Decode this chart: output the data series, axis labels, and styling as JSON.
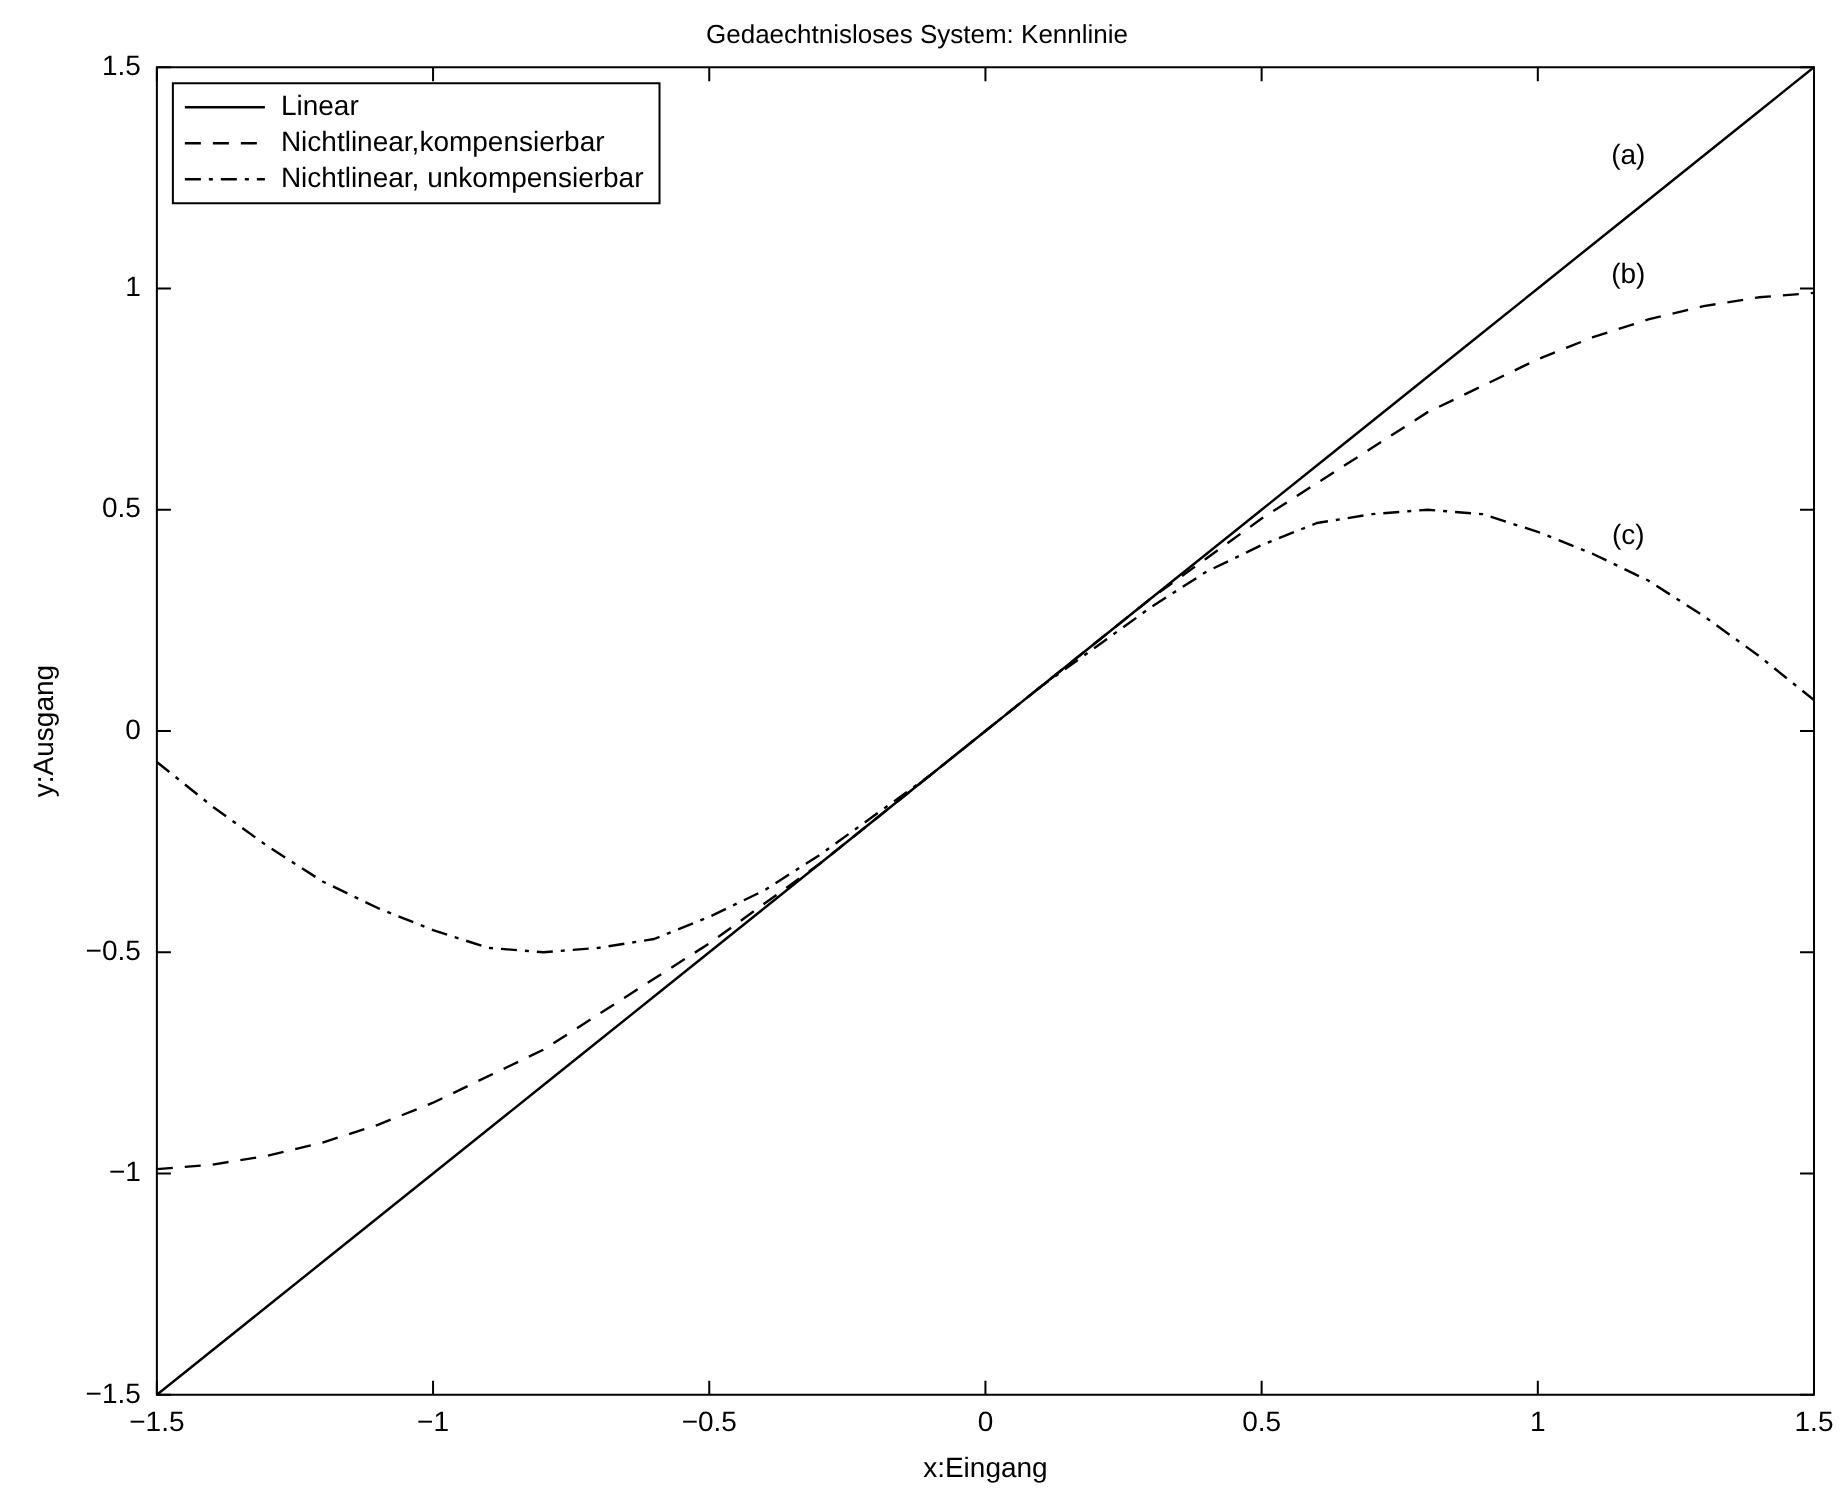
{
  "chart_data": {
    "type": "line",
    "title": "Gedaechtnisloses System: Kennlinie",
    "xlabel": "x:Eingang",
    "ylabel": "y:Ausgang",
    "x": [
      -1.5,
      -1.4,
      -1.3,
      -1.2,
      -1.1,
      -1.0,
      -0.9,
      -0.8,
      -0.7,
      -0.6,
      -0.5,
      -0.4,
      -0.3,
      -0.2,
      -0.1,
      0,
      0.1,
      0.2,
      0.3,
      0.4,
      0.5,
      0.6,
      0.7,
      0.8,
      0.9,
      1.0,
      1.1,
      1.2,
      1.3,
      1.4,
      1.5
    ],
    "series": [
      {
        "name": "Linear",
        "color": "#000000",
        "line_style": "solid",
        "values": [
          -1.5,
          -1.4,
          -1.3,
          -1.2,
          -1.1,
          -1.0,
          -0.9,
          -0.8,
          -0.7,
          -0.6,
          -0.5,
          -0.4,
          -0.3,
          -0.2,
          -0.1,
          0,
          0.1,
          0.2,
          0.3,
          0.4,
          0.5,
          0.6,
          0.7,
          0.8,
          0.9,
          1.0,
          1.1,
          1.2,
          1.3,
          1.4,
          1.5
        ]
      },
      {
        "name": "Nichtlinear,kompensierbar",
        "color": "#000000",
        "line_style": "dashed",
        "values": [
          -0.99,
          -0.98,
          -0.96,
          -0.93,
          -0.89,
          -0.84,
          -0.78,
          -0.72,
          -0.64,
          -0.56,
          -0.48,
          -0.39,
          -0.3,
          -0.2,
          -0.1,
          0,
          0.1,
          0.2,
          0.3,
          0.39,
          0.48,
          0.56,
          0.64,
          0.72,
          0.78,
          0.84,
          0.89,
          0.93,
          0.96,
          0.98,
          0.99
        ]
      },
      {
        "name": "Nichtlinear, unkompensierbar",
        "color": "#000000",
        "line_style": "dashdot",
        "values": [
          -0.07,
          -0.17,
          -0.26,
          -0.34,
          -0.4,
          -0.45,
          -0.49,
          -0.5,
          -0.49,
          -0.47,
          -0.42,
          -0.36,
          -0.28,
          -0.19,
          -0.1,
          0,
          0.1,
          0.19,
          0.28,
          0.36,
          0.42,
          0.47,
          0.49,
          0.5,
          0.49,
          0.45,
          0.4,
          0.34,
          0.26,
          0.17,
          0.07
        ]
      }
    ],
    "xlim": [
      -1.5,
      1.5
    ],
    "ylim": [
      -1.5,
      1.5
    ],
    "xticks": [
      {
        "value": -1.5,
        "label": "−1.5"
      },
      {
        "value": -1,
        "label": "−1"
      },
      {
        "value": -0.5,
        "label": "−0.5"
      },
      0,
      0.5,
      1,
      1.5
    ],
    "yticks": [
      {
        "value": -1.5,
        "label": "−1.5"
      },
      {
        "value": -1,
        "label": "−1"
      },
      {
        "value": -0.5,
        "label": "−0.5"
      },
      0,
      0.5,
      1,
      1.5
    ],
    "grid": false,
    "legend": "top left",
    "marker": "none",
    "annotations": [
      "(a)",
      "(b)",
      "(c)"
    ]
  }
}
